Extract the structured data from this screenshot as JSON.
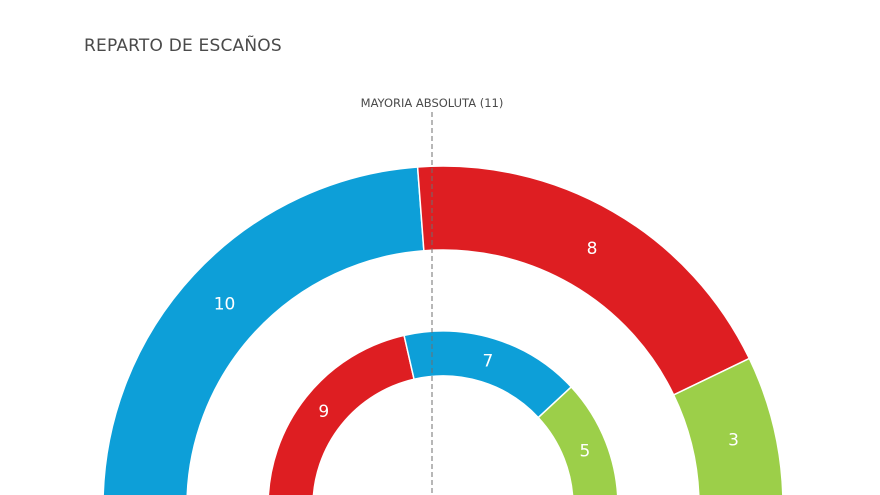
{
  "chart_data": {
    "type": "pie",
    "variant": "concentric-hemicycle",
    "title": "REPARTO DE ESCAÑOS",
    "total_seats": 21,
    "majority": {
      "label": "MAYORIA ABSOLUTA (11)",
      "seats": 11
    },
    "rings": [
      {
        "name": "outer",
        "segments": [
          {
            "seats": 10,
            "label": "10",
            "color": "#0d9fd8"
          },
          {
            "seats": 8,
            "label": "8",
            "color": "#de1e22"
          },
          {
            "seats": 3,
            "label": "3",
            "color": "#9ccf49"
          }
        ]
      },
      {
        "name": "inner",
        "segments": [
          {
            "seats": 9,
            "label": "9",
            "color": "#de1e22"
          },
          {
            "seats": 7,
            "label": "7",
            "color": "#0d9fd8"
          },
          {
            "seats": 5,
            "label": "5",
            "color": "#9ccf49"
          }
        ]
      }
    ]
  }
}
